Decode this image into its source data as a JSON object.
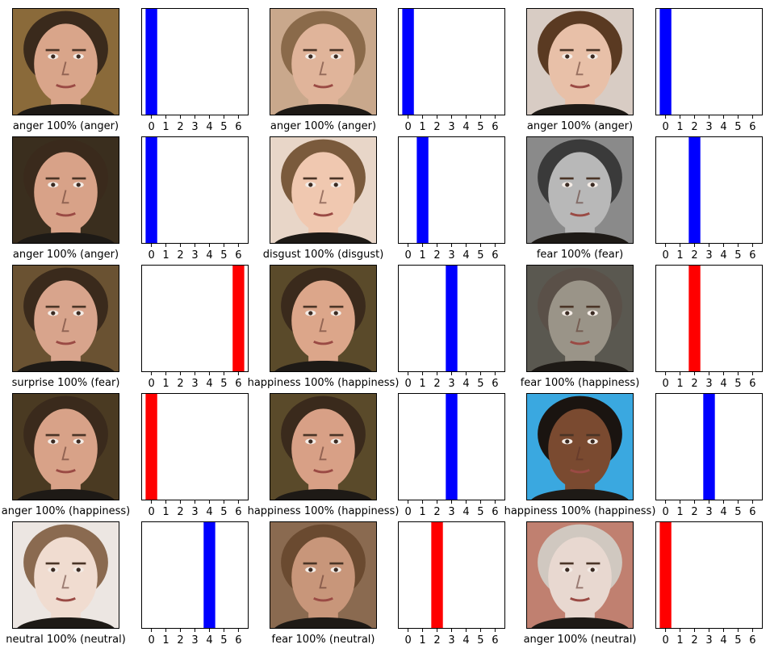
{
  "chart_data": {
    "type": "bar",
    "description_note": "",
    "categories": [
      "0",
      "1",
      "2",
      "3",
      "4",
      "5",
      "6"
    ],
    "ylim": [
      0,
      1
    ],
    "colors": {
      "correct": "#0000ff",
      "wrong": "#ff0000"
    },
    "panels": [
      {
        "caption": "anger 100% (anger)",
        "predicted": 0,
        "true_label": 0,
        "values": [
          1,
          0,
          0,
          0,
          0,
          0,
          0
        ]
      },
      {
        "caption": "anger 100% (anger)",
        "predicted": 0,
        "true_label": 0,
        "values": [
          1,
          0,
          0,
          0,
          0,
          0,
          0
        ]
      },
      {
        "caption": "anger 100% (anger)",
        "predicted": 0,
        "true_label": 0,
        "values": [
          1,
          0,
          0,
          0,
          0,
          0,
          0
        ]
      },
      {
        "caption": "anger 100% (anger)",
        "predicted": 0,
        "true_label": 0,
        "values": [
          1,
          0,
          0,
          0,
          0,
          0,
          0
        ]
      },
      {
        "caption": "disgust 100% (disgust)",
        "predicted": 1,
        "true_label": 1,
        "values": [
          0,
          1,
          0,
          0,
          0,
          0,
          0
        ]
      },
      {
        "caption": "fear 100% (fear)",
        "predicted": 2,
        "true_label": 2,
        "values": [
          0,
          0,
          1,
          0,
          0,
          0,
          0
        ]
      },
      {
        "caption": "surprise 100% (fear)",
        "predicted": 6,
        "true_label": 2,
        "values": [
          0,
          0,
          0,
          0,
          0,
          0,
          1
        ]
      },
      {
        "caption": "happiness 100% (happiness)",
        "predicted": 3,
        "true_label": 3,
        "values": [
          0,
          0,
          0,
          1,
          0,
          0,
          0
        ]
      },
      {
        "caption": "fear 100% (happiness)",
        "predicted": 2,
        "true_label": 3,
        "values": [
          0,
          0,
          1,
          0,
          0,
          0,
          0
        ]
      },
      {
        "caption": "anger 100% (happiness)",
        "predicted": 0,
        "true_label": 3,
        "values": [
          1,
          0,
          0,
          0,
          0,
          0,
          0
        ]
      },
      {
        "caption": "happiness 100% (happiness)",
        "predicted": 3,
        "true_label": 3,
        "values": [
          0,
          0,
          0,
          1,
          0,
          0,
          0
        ]
      },
      {
        "caption": "happiness 100% (happiness)",
        "predicted": 3,
        "true_label": 3,
        "values": [
          0,
          0,
          0,
          1,
          0,
          0,
          0
        ]
      },
      {
        "caption": "neutral 100% (neutral)",
        "predicted": 4,
        "true_label": 4,
        "values": [
          0,
          0,
          0,
          0,
          1,
          0,
          0
        ]
      },
      {
        "caption": "fear 100% (neutral)",
        "predicted": 2,
        "true_label": 4,
        "values": [
          0,
          0,
          1,
          0,
          0,
          0,
          0
        ]
      },
      {
        "caption": "anger 100% (neutral)",
        "predicted": 0,
        "true_label": 4,
        "values": [
          1,
          0,
          0,
          0,
          0,
          0,
          0
        ]
      }
    ]
  },
  "faces": [
    {
      "icon": "face-photo-young-man-headphones",
      "skin": "#d9a58a",
      "bg": "#8a6a3a",
      "hair": "#3a2a1c"
    },
    {
      "icon": "face-photo-girl-long-hair",
      "skin": "#e0b49a",
      "bg": "#c9a88c",
      "hair": "#8a6a4a"
    },
    {
      "icon": "face-photo-boy-fringe",
      "skin": "#e8c0a8",
      "bg": "#d8ccc4",
      "hair": "#5a3a22"
    },
    {
      "icon": "face-photo-young-man-headphones",
      "skin": "#d8a288",
      "bg": "#3a2e1e",
      "hair": "#3a2a1c"
    },
    {
      "icon": "face-photo-woman-grimace",
      "skin": "#f0c8b0",
      "bg": "#e8d6c8",
      "hair": "#7a5a3c"
    },
    {
      "icon": "face-photo-woman-hands-on-face-grayscale",
      "skin": "#b8b8b8",
      "bg": "#8a8a8a",
      "hair": "#3a3a3a"
    },
    {
      "icon": "face-photo-young-man-hand-on-mouth",
      "skin": "#d8a48c",
      "bg": "#6a5232",
      "hair": "#3a2a1c"
    },
    {
      "icon": "face-photo-young-man-smiling",
      "skin": "#dca68a",
      "bg": "#5a4a2a",
      "hair": "#3a2a1c"
    },
    {
      "icon": "face-photo-man-round-glasses",
      "skin": "#9a9488",
      "bg": "#5a5850",
      "hair": "#5a5048"
    },
    {
      "icon": "face-photo-young-man-headphones",
      "skin": "#d8a288",
      "bg": "#4a3a22",
      "hair": "#3a2a1c"
    },
    {
      "icon": "face-photo-young-man-squinting-smile",
      "skin": "#d8a086",
      "bg": "#5a4a2a",
      "hair": "#3a2a1c"
    },
    {
      "icon": "face-photo-man-big-smile-blue-bg",
      "skin": "#7a4a30",
      "bg": "#3aa8e0",
      "hair": "#1a1410"
    },
    {
      "icon": "face-photo-woman-neutral-light",
      "skin": "#f0dcd0",
      "bg": "#ece6e2",
      "hair": "#8a6a50"
    },
    {
      "icon": "face-photo-woman-side-glance",
      "skin": "#c8967a",
      "bg": "#8a6a50",
      "hair": "#6a4a30"
    },
    {
      "icon": "face-photo-man-glasses-bright",
      "skin": "#e8d8d0",
      "bg": "#c08070",
      "hair": "#d0c8c0"
    }
  ]
}
